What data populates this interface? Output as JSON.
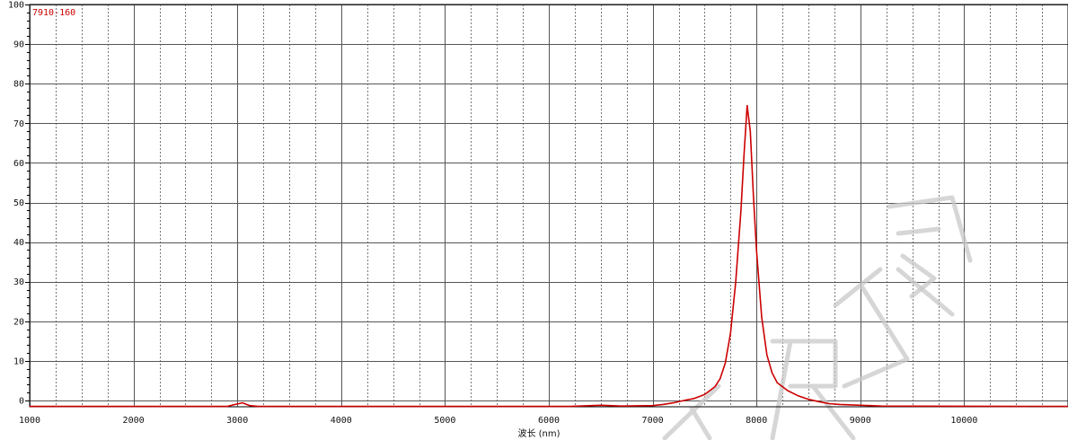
{
  "chart_data": {
    "type": "line",
    "title": "",
    "xlabel": "波长 (nm)",
    "ylabel": "",
    "xlim": [
      1000,
      11000
    ],
    "ylim": [
      -1,
      100
    ],
    "x_ticks": [
      1000,
      2000,
      3000,
      4000,
      5000,
      6000,
      7000,
      8000,
      9000,
      10000
    ],
    "y_ticks": [
      0,
      10,
      20,
      30,
      40,
      50,
      60,
      70,
      80,
      90,
      100
    ],
    "grid": true,
    "legend_position": "top-left",
    "series": [
      {
        "name": "7910-160",
        "color": "#cc0000",
        "points": [
          [
            1000,
            -1.5
          ],
          [
            2900,
            -1.5
          ],
          [
            2980,
            -1.0
          ],
          [
            3050,
            -0.6
          ],
          [
            3120,
            -1.3
          ],
          [
            3200,
            -1.5
          ],
          [
            6200,
            -1.5
          ],
          [
            6500,
            -1.2
          ],
          [
            6700,
            -1.4
          ],
          [
            7000,
            -1.3
          ],
          [
            7100,
            -1.0
          ],
          [
            7200,
            -0.6
          ],
          [
            7300,
            0.0
          ],
          [
            7400,
            0.5
          ],
          [
            7500,
            1.5
          ],
          [
            7600,
            3.5
          ],
          [
            7650,
            5.5
          ],
          [
            7700,
            9.5
          ],
          [
            7750,
            17.0
          ],
          [
            7800,
            30.0
          ],
          [
            7850,
            48.0
          ],
          [
            7880,
            62.0
          ],
          [
            7910,
            74.5
          ],
          [
            7940,
            68.0
          ],
          [
            7970,
            52.0
          ],
          [
            8000,
            38.0
          ],
          [
            8050,
            21.0
          ],
          [
            8100,
            11.5
          ],
          [
            8150,
            7.0
          ],
          [
            8200,
            4.5
          ],
          [
            8300,
            2.5
          ],
          [
            8400,
            1.2
          ],
          [
            8500,
            0.3
          ],
          [
            8600,
            -0.3
          ],
          [
            8700,
            -0.8
          ],
          [
            8800,
            -1.0
          ],
          [
            9000,
            -1.2
          ],
          [
            9200,
            -1.4
          ],
          [
            11000,
            -1.5
          ]
        ]
      }
    ]
  }
}
